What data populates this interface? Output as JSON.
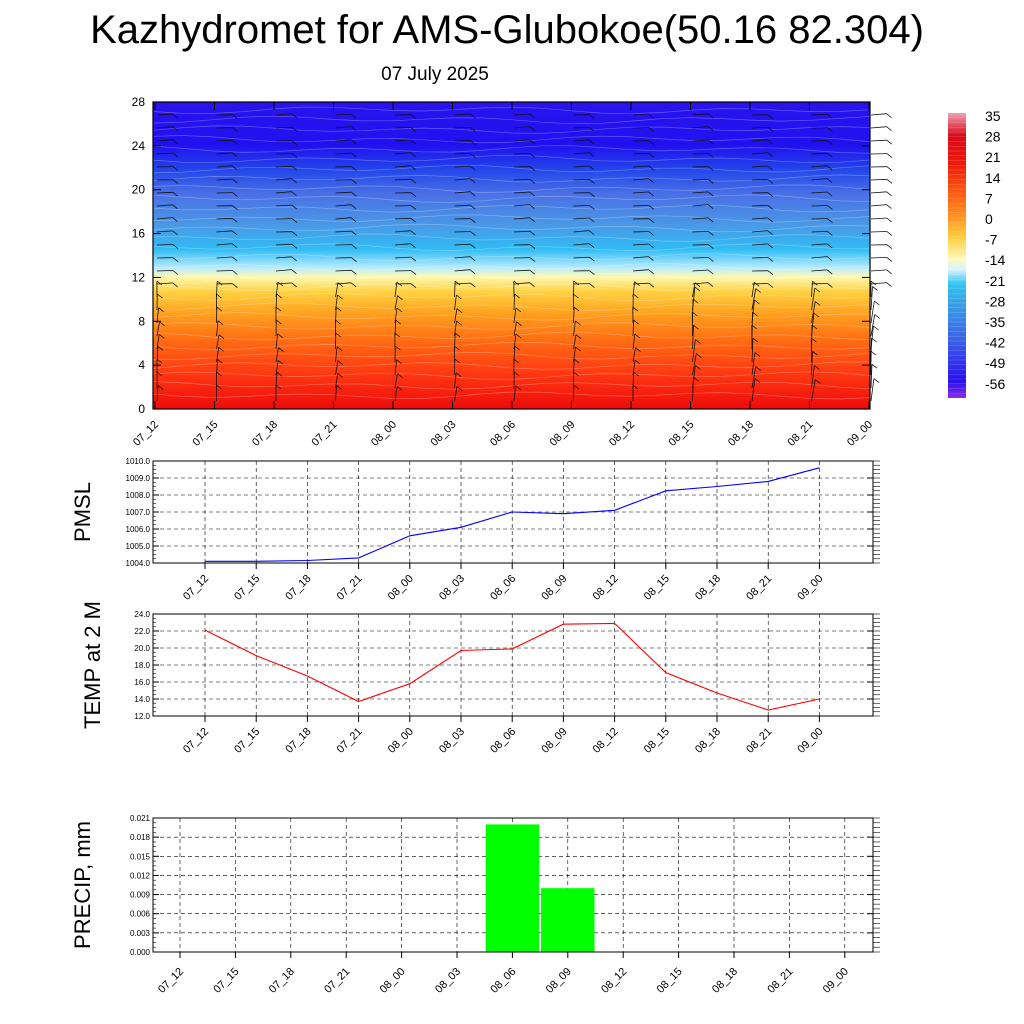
{
  "header": {
    "title": "Kazhydromet for AMS-Glubokoe(50.16 82.304)",
    "subtitle": "07 July 2025"
  },
  "chart_data": [
    {
      "type": "heatmap",
      "title": "",
      "xlabel": "",
      "ylabel": "",
      "x_ticks": [
        "07_12",
        "07_15",
        "07_18",
        "07_21",
        "08_00",
        "08_03",
        "08_06",
        "08_09",
        "08_12",
        "08_15",
        "08_18",
        "08_21",
        "09_00"
      ],
      "y_ticks": [
        0,
        4,
        8,
        12,
        16,
        20,
        24,
        28
      ],
      "ylim": [
        0,
        28
      ],
      "colorbar": {
        "labels": [
          35,
          28,
          21,
          14,
          7,
          0,
          -7,
          -14,
          -21,
          -28,
          -35,
          -42,
          -49,
          -56
        ],
        "range": [
          -60,
          38
        ]
      },
      "overlay": "wind barbs",
      "grid": false
    },
    {
      "type": "line",
      "ylabel": "PMSL",
      "x": [
        "07_12",
        "07_15",
        "07_18",
        "07_21",
        "08_00",
        "08_03",
        "08_06",
        "08_09",
        "08_12",
        "08_15",
        "08_18",
        "08_21",
        "09_00"
      ],
      "y_ticks": [
        "1004.0",
        "1005.0",
        "1006.0",
        "1007.0",
        "1008.0",
        "1009.0",
        "1010.0"
      ],
      "ylim": [
        1004,
        1010
      ],
      "series": [
        {
          "values": [
            1004.1,
            1004.1,
            1004.15,
            1004.3,
            1005.6,
            1006.1,
            1007.0,
            1006.9,
            1007.1,
            1008.25,
            1008.5,
            1008.8,
            1009.6
          ],
          "color": "#0000ff"
        }
      ],
      "grid": true
    },
    {
      "type": "line",
      "ylabel": "TEMP at 2 M",
      "x": [
        "07_12",
        "07_15",
        "07_18",
        "07_21",
        "08_00",
        "08_03",
        "08_06",
        "08_09",
        "08_12",
        "08_15",
        "08_18",
        "08_21",
        "09_00"
      ],
      "y_ticks": [
        "12.0",
        "14.0",
        "16.0",
        "18.0",
        "20.0",
        "22.0",
        "24.0"
      ],
      "ylim": [
        12,
        24
      ],
      "series": [
        {
          "values": [
            22.1,
            19.1,
            16.7,
            13.7,
            15.8,
            19.7,
            19.9,
            22.8,
            22.9,
            17.1,
            14.7,
            12.7,
            14.0
          ],
          "color": "#ff0000"
        }
      ],
      "grid": true
    },
    {
      "type": "bar",
      "ylabel": "PRECIP, mm",
      "categories": [
        "07_12",
        "07_15",
        "07_18",
        "07_21",
        "08_00",
        "08_03",
        "08_06",
        "08_09",
        "08_12",
        "08_15",
        "08_18",
        "08_21",
        "09_00"
      ],
      "y_ticks": [
        "0.000",
        "0.003",
        "0.006",
        "0.009",
        "0.012",
        "0.015",
        "0.018",
        "0.021"
      ],
      "ylim": [
        0,
        0.021
      ],
      "values": [
        0,
        0,
        0,
        0,
        0,
        0,
        0.02,
        0.01,
        0,
        0,
        0,
        0,
        0
      ],
      "color": "#00ff00",
      "grid": true
    }
  ]
}
